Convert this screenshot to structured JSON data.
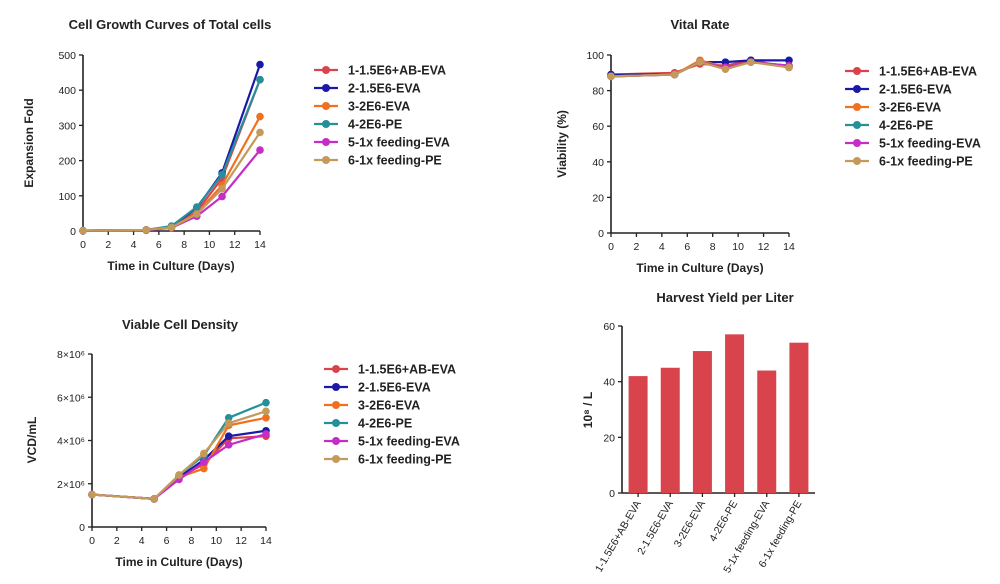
{
  "legend": [
    "1-1.5E6+AB-EVA",
    "2-1.5E6-EVA",
    "3-2E6-EVA",
    "4-2E6-PE",
    "5-1x feeding-EVA",
    "6-1x feeding-PE"
  ],
  "colors": [
    "#d9434b",
    "#1a1aa6",
    "#f07020",
    "#25909a",
    "#c62dc6",
    "#c49a5a"
  ],
  "chart_data": [
    {
      "type": "line",
      "title": "Cell Growth Curves of Total cells",
      "xlabel": "Time in Culture (Days)",
      "ylabel": "Expansion Fold",
      "xlim": [
        0,
        14
      ],
      "ylim": [
        0,
        500
      ],
      "xticks": [
        "0",
        "2",
        "4",
        "6",
        "8",
        "10",
        "12",
        "14"
      ],
      "yticks": [
        "0",
        "100",
        "200",
        "300",
        "400",
        "500"
      ],
      "x": [
        0,
        5,
        7,
        9,
        11,
        14
      ],
      "series": [
        {
          "name": "1-1.5E6+AB-EVA",
          "values": [
            1,
            3,
            12,
            55,
            150,
            430
          ]
        },
        {
          "name": "2-1.5E6-EVA",
          "values": [
            1,
            3,
            13,
            65,
            165,
            473
          ]
        },
        {
          "name": "3-2E6-EVA",
          "values": [
            1,
            3,
            11,
            50,
            130,
            325
          ]
        },
        {
          "name": "4-2E6-PE",
          "values": [
            1,
            3,
            14,
            68,
            160,
            430
          ]
        },
        {
          "name": "5-1x feeding-EVA",
          "values": [
            1,
            2,
            9,
            42,
            98,
            230
          ]
        },
        {
          "name": "6-1x feeding-PE",
          "values": [
            1,
            3,
            10,
            48,
            120,
            280
          ]
        }
      ],
      "grid": false,
      "legend": "right"
    },
    {
      "type": "line",
      "title": "Vital Rate",
      "xlabel": "Time in Culture (Days)",
      "ylabel": "Viability (%)",
      "xlim": [
        0,
        14
      ],
      "ylim": [
        0,
        100
      ],
      "xticks": [
        "0",
        "2",
        "4",
        "6",
        "8",
        "10",
        "12",
        "14"
      ],
      "yticks": [
        "0",
        "20",
        "40",
        "60",
        "80",
        "100"
      ],
      "x": [
        0,
        5,
        7,
        9,
        11,
        14
      ],
      "series": [
        {
          "name": "1-1.5E6+AB-EVA",
          "values": [
            89,
            90,
            95,
            94,
            97,
            93
          ]
        },
        {
          "name": "2-1.5E6-EVA",
          "values": [
            89,
            89,
            96,
            96,
            97,
            97
          ]
        },
        {
          "name": "3-2E6-EVA",
          "values": [
            88,
            89,
            97,
            93,
            96,
            94
          ]
        },
        {
          "name": "4-2E6-PE",
          "values": [
            88,
            89,
            96,
            93,
            96,
            94
          ]
        },
        {
          "name": "5-1x feeding-EVA",
          "values": [
            88,
            89,
            96,
            93,
            96,
            94
          ]
        },
        {
          "name": "6-1x feeding-PE",
          "values": [
            88,
            89,
            96,
            92,
            96,
            93
          ]
        }
      ],
      "grid": false,
      "legend": "right"
    },
    {
      "type": "line",
      "title": "Viable Cell Density",
      "xlabel": "Time in Culture (Days)",
      "ylabel": "VCD/mL",
      "xlim": [
        0,
        14
      ],
      "ylim": [
        0,
        8000000
      ],
      "xticks": [
        "0",
        "2",
        "4",
        "6",
        "8",
        "10",
        "12",
        "14"
      ],
      "yticks": [
        "0",
        "2×10⁶",
        "4×10⁶",
        "6×10⁶",
        "8×10⁶"
      ],
      "x": [
        0,
        5,
        7,
        9,
        11,
        14
      ],
      "series": [
        {
          "name": "1-1.5E6+AB-EVA",
          "values": [
            1500000,
            1300000,
            2300000,
            2900000,
            4100000,
            4200000
          ]
        },
        {
          "name": "2-1.5E6-EVA",
          "values": [
            1500000,
            1300000,
            2300000,
            3100000,
            4200000,
            4450000
          ]
        },
        {
          "name": "3-2E6-EVA",
          "values": [
            1500000,
            1300000,
            2300000,
            2700000,
            4700000,
            5050000
          ]
        },
        {
          "name": "4-2E6-PE",
          "values": [
            1500000,
            1300000,
            2400000,
            3300000,
            5050000,
            5750000
          ]
        },
        {
          "name": "5-1x feeding-EVA",
          "values": [
            1500000,
            1300000,
            2200000,
            3000000,
            3800000,
            4300000
          ]
        },
        {
          "name": "6-1x feeding-PE",
          "values": [
            1500000,
            1300000,
            2400000,
            3400000,
            4800000,
            5350000
          ]
        }
      ],
      "grid": false,
      "legend": "right"
    },
    {
      "type": "bar",
      "title": "Harvest Yield per Liter",
      "xlabel": "",
      "ylabel": "10⁸ / L",
      "ylim": [
        0,
        60
      ],
      "yticks": [
        "0",
        "20",
        "40",
        "60"
      ],
      "categories": [
        "1-1.5E6+AB-EVA",
        "2-1.5E6-EVA",
        "3-2E6-EVA",
        "4-2E6-PE",
        "5-1x feeding-EVA",
        "6-1x feeding-PE"
      ],
      "values": [
        42,
        45,
        51,
        57,
        44,
        54
      ],
      "color": "#d9434b",
      "grid": false
    }
  ]
}
